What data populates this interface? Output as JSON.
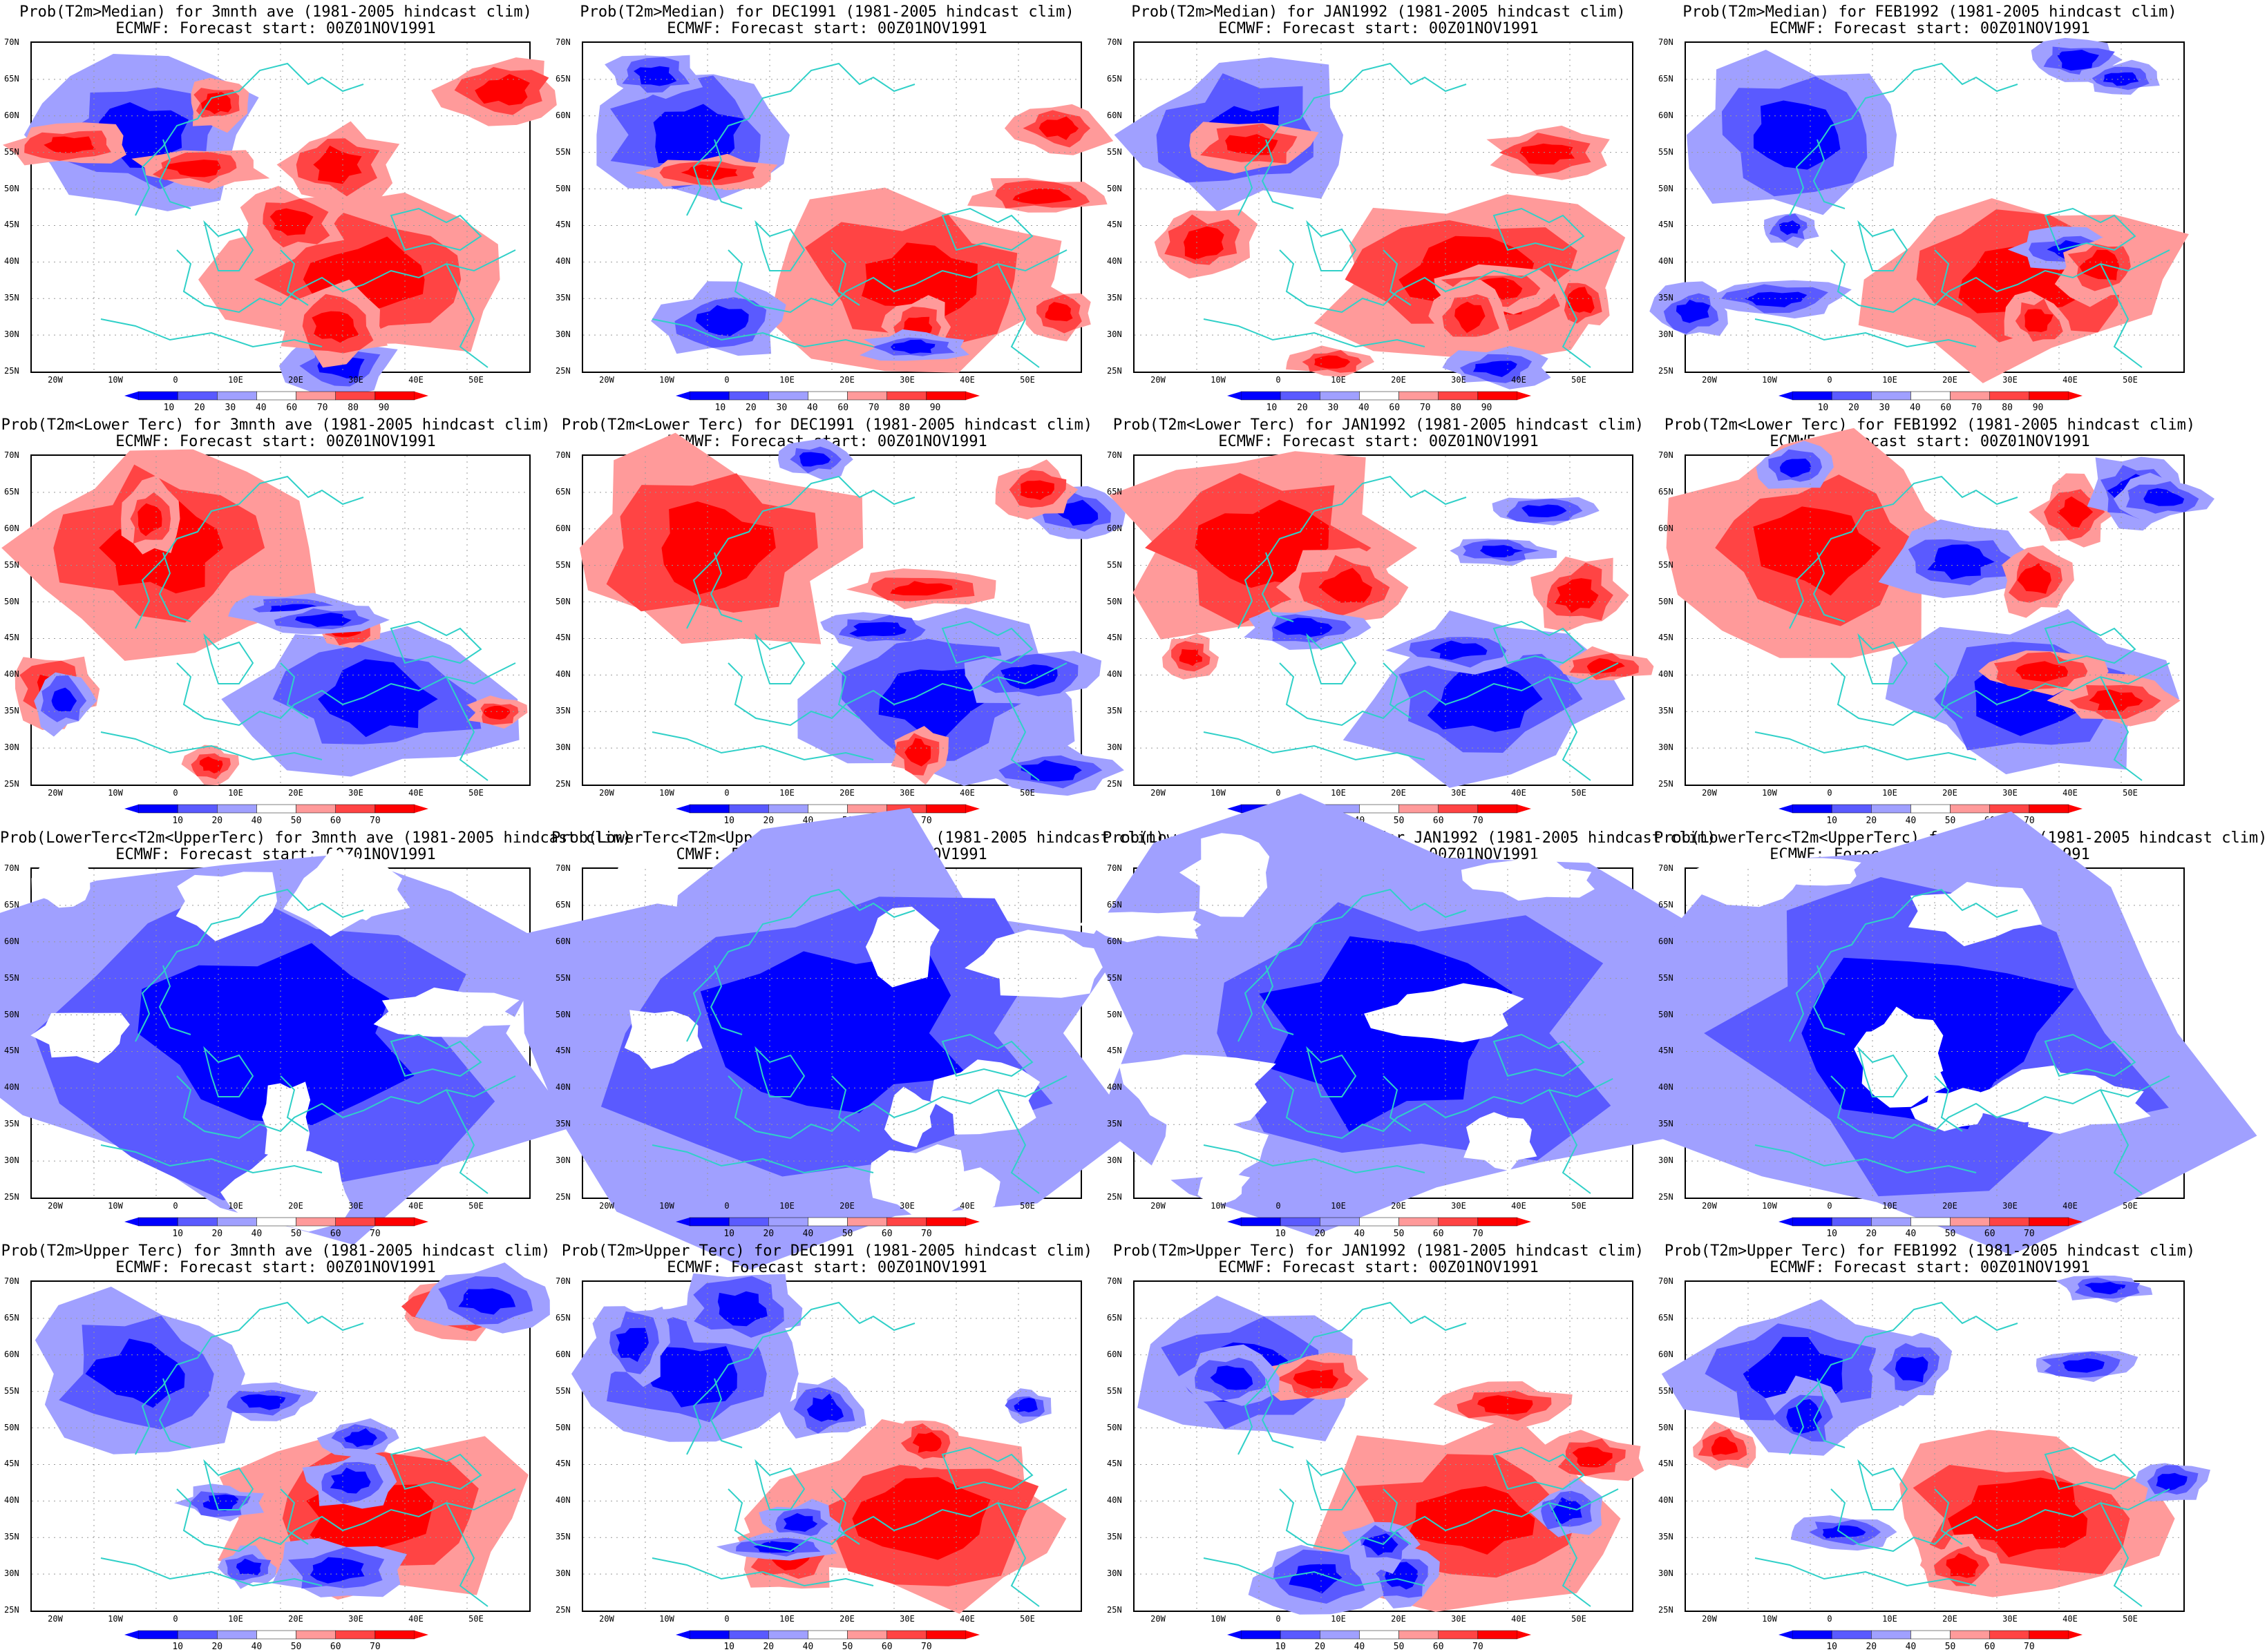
{
  "forecast_start": "ECMWF: Forecast start: 00Z01NOV1991",
  "colors": {
    "blue_strong": "#0000ff",
    "blue_mid": "#5a5aff",
    "blue_light": "#a0a0ff",
    "red_light": "#ff9a9a",
    "red_mid": "#ff4444",
    "red_strong": "#ff0000",
    "coast": "#30d0c8"
  },
  "lat_labels": [
    "70N",
    "65N",
    "60N",
    "55N",
    "50N",
    "45N",
    "40N",
    "35N",
    "30N",
    "25N"
  ],
  "lon_labels": [
    "20W",
    "10W",
    "0",
    "10E",
    "20E",
    "30E",
    "40E",
    "50E"
  ],
  "rows": [
    {
      "colorbar_ticks": [
        "10",
        "20",
        "30",
        "40",
        "60",
        "70",
        "80",
        "90"
      ],
      "titles": [
        "Prob(T2m>Median) for 3mnth ave (1981-2005 hindcast clim)",
        "Prob(T2m>Median) for DEC1991 (1981-2005 hindcast clim)",
        "Prob(T2m>Median) for JAN1992 (1981-2005 hindcast clim)",
        "Prob(T2m>Median) for FEB1992 (1981-2005 hindcast clim)"
      ]
    },
    {
      "colorbar_ticks": [
        "10",
        "20",
        "40",
        "50",
        "60",
        "70"
      ],
      "titles": [
        "Prob(T2m<Lower Terc) for 3mnth ave (1981-2005 hindcast clim)",
        "Prob(T2m<Lower Terc) for DEC1991 (1981-2005 hindcast clim)",
        "Prob(T2m<Lower Terc) for JAN1992 (1981-2005 hindcast clim)",
        "Prob(T2m<Lower Terc) for FEB1992 (1981-2005 hindcast clim)"
      ]
    },
    {
      "colorbar_ticks": [
        "10",
        "20",
        "40",
        "50",
        "60",
        "70"
      ],
      "titles": [
        "Prob(LowerTerc<T2m<UpperTerc) for 3mnth ave (1981-2005 hindcast clim)",
        "Prob(LowerTerc<T2m<UpperTerc) for DEC1991 (1981-2005 hindcast clim)",
        "Prob(LowerTerc<T2m<UpperTerc) for JAN1992 (1981-2005 hindcast clim)",
        "Prob(LowerTerc<T2m<UpperTerc) for FEB1992 (1981-2005 hindcast clim)"
      ]
    },
    {
      "colorbar_ticks": [
        "10",
        "20",
        "40",
        "50",
        "60",
        "70"
      ],
      "titles": [
        "Prob(T2m>Upper Terc) for 3mnth ave (1981-2005 hindcast clim)",
        "Prob(T2m>Upper Terc) for DEC1991 (1981-2005 hindcast clim)",
        "Prob(T2m>Upper Terc) for JAN1992 (1981-2005 hindcast clim)",
        "Prob(T2m>Upper Terc) for FEB1992 (1981-2005 hindcast clim)"
      ]
    }
  ]
}
